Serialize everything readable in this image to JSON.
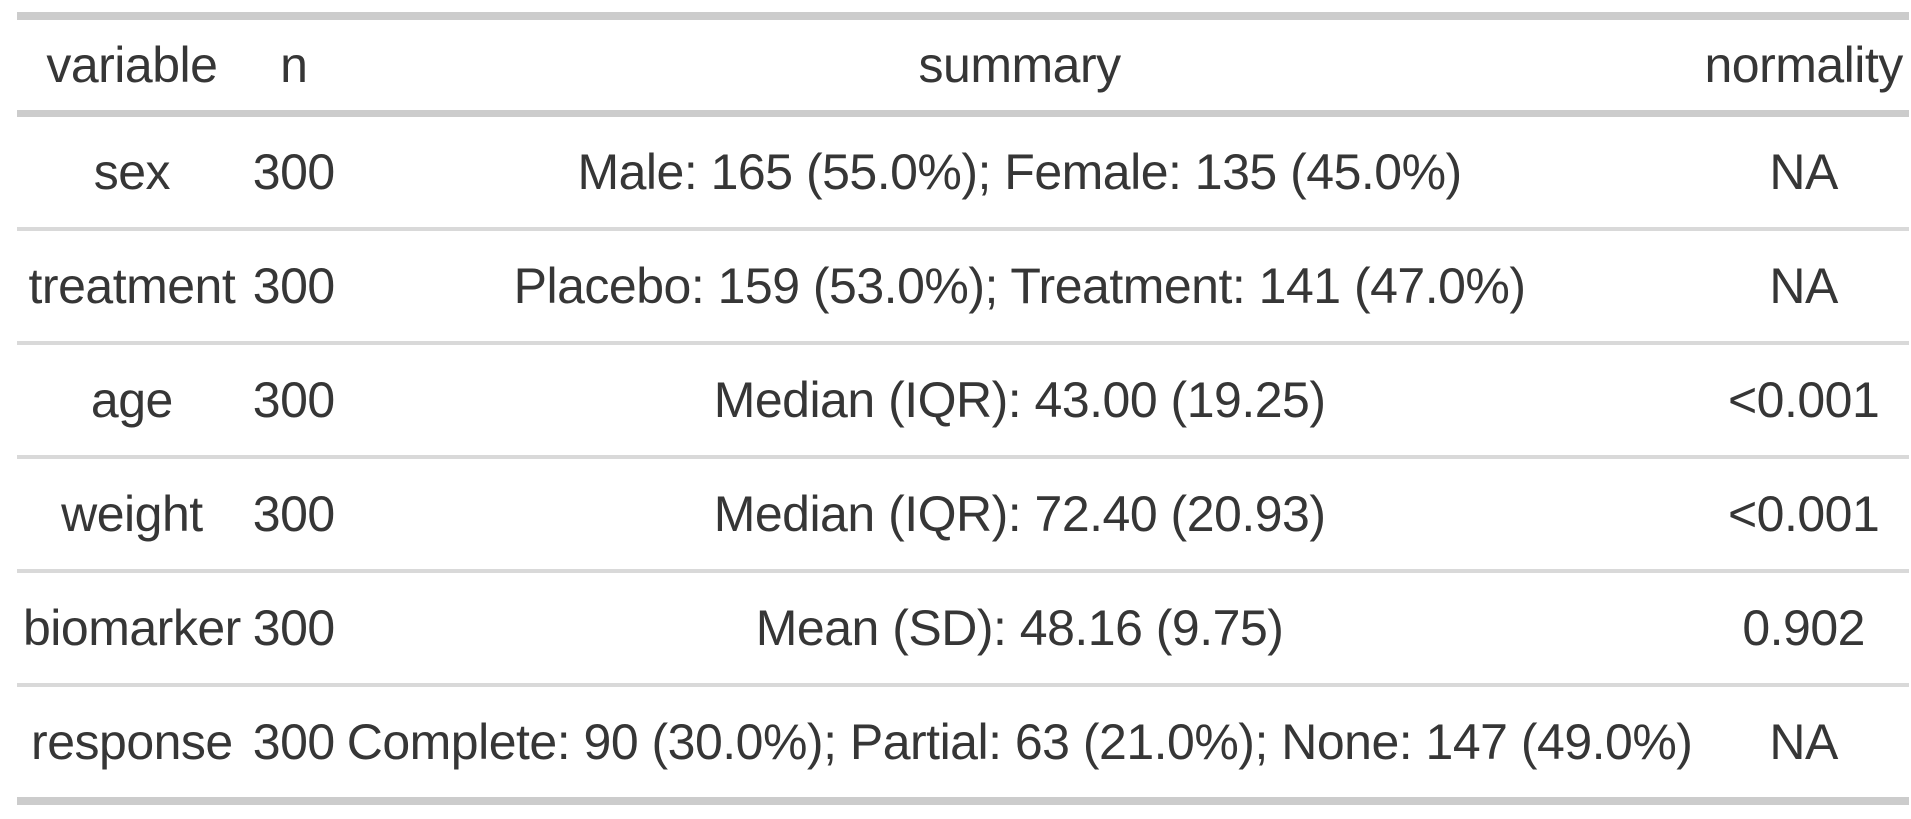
{
  "chart_data": {
    "type": "table",
    "columns": [
      "variable",
      "n",
      "summary",
      "normality"
    ],
    "rows": [
      {
        "variable": "sex",
        "n": "300",
        "summary": "Male: 165 (55.0%); Female: 135 (45.0%)",
        "normality": "NA"
      },
      {
        "variable": "treatment",
        "n": "300",
        "summary": "Placebo: 159 (53.0%); Treatment: 141 (47.0%)",
        "normality": "NA"
      },
      {
        "variable": "age",
        "n": "300",
        "summary": "Median (IQR): 43.00 (19.25)",
        "normality": "<0.001"
      },
      {
        "variable": "weight",
        "n": "300",
        "summary": "Median (IQR): 72.40 (20.93)",
        "normality": "<0.001"
      },
      {
        "variable": "biomarker",
        "n": "300",
        "summary": "Mean (SD): 48.16 (9.75)",
        "normality": "0.902"
      },
      {
        "variable": "response",
        "n": "300",
        "summary": "Complete: 90 (30.0%); Partial: 63 (21.0%); None: 147 (49.0%)",
        "normality": "NA"
      }
    ],
    "layout_hints": {
      "alignment": "center",
      "grid": "horizontal-rules-only",
      "outer_border_color": "#cccccc",
      "inner_border_color": "#d9d9d9",
      "text_color": "#363636",
      "background": "#ffffff"
    }
  }
}
